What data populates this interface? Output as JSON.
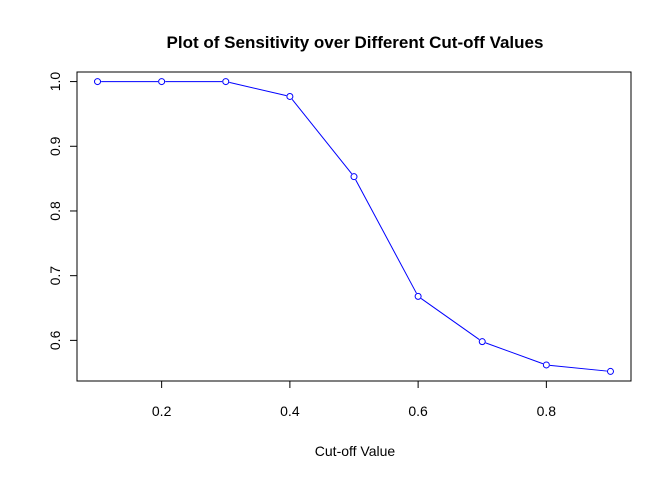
{
  "chart_data": {
    "type": "line",
    "title": "Plot of Sensitivity over Different Cut-off Values",
    "xlabel": "Cut-off Value",
    "ylabel": "",
    "x": [
      0.1,
      0.2,
      0.3,
      0.4,
      0.5,
      0.6,
      0.7,
      0.8,
      0.9
    ],
    "series": [
      {
        "values": [
          1.0,
          1.0,
          1.0,
          0.977,
          0.853,
          0.668,
          0.598,
          0.562,
          0.552
        ],
        "color": "#0000ff"
      }
    ],
    "xlim": [
      0.068,
      0.932
    ],
    "ylim": [
      0.5372,
      1.0148
    ],
    "xticks": [
      0.2,
      0.4,
      0.6,
      0.8
    ],
    "xtick_labels": [
      "0.2",
      "0.4",
      "0.6",
      "0.8"
    ],
    "yticks": [
      0.6,
      0.7,
      0.8,
      0.9,
      1.0
    ],
    "ytick_labels": [
      "0.6",
      "0.7",
      "0.8",
      "0.9",
      "1.0"
    ],
    "grid": false,
    "marker": "open-circle"
  }
}
